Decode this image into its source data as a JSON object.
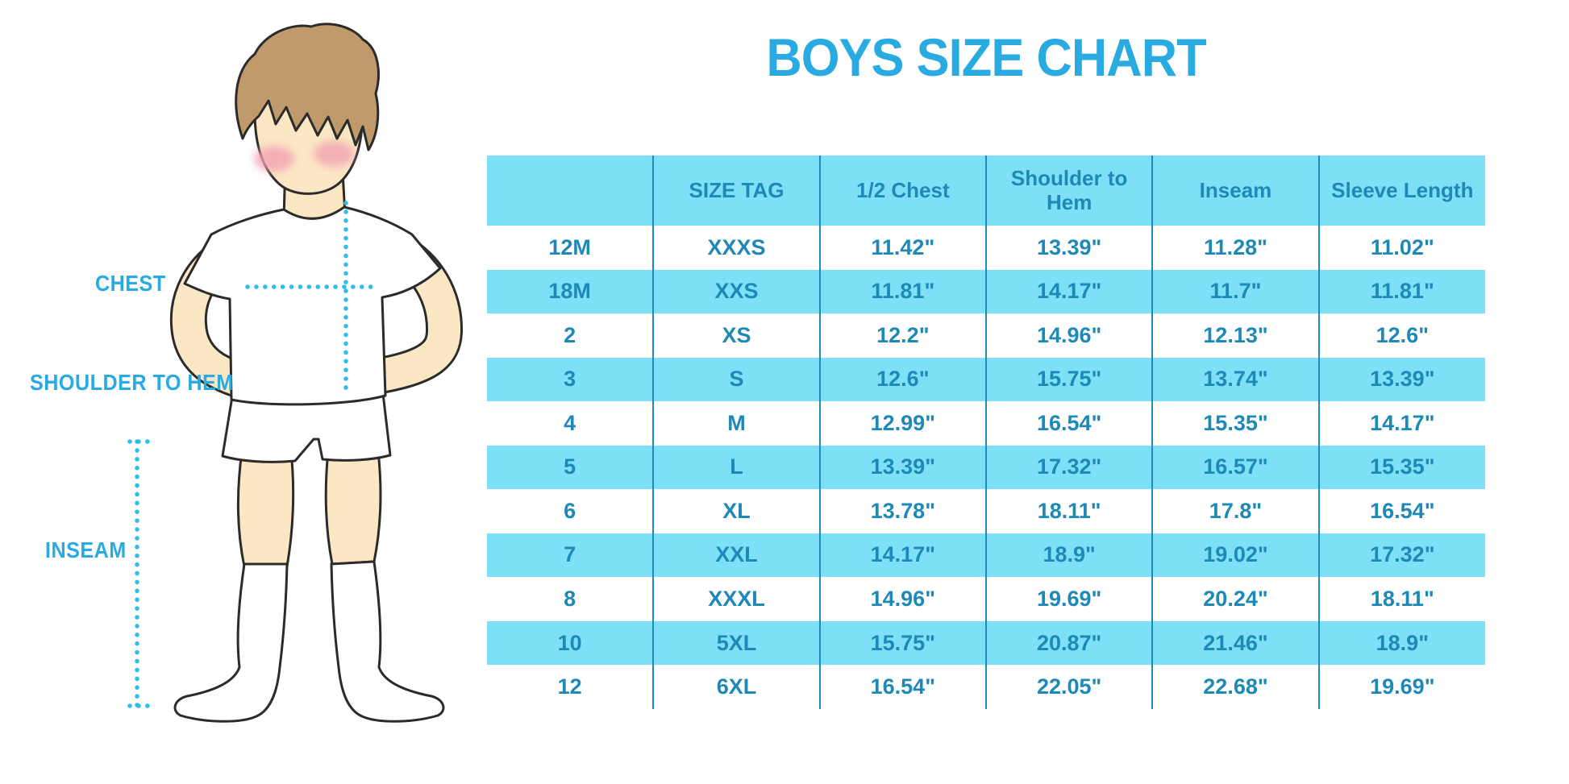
{
  "title": "BOYS SIZE CHART",
  "figure_labels": {
    "chest": "CHEST",
    "shoulder_to_hem": "SHOULDER TO HEM",
    "inseam": "INSEAM"
  },
  "colors": {
    "accent_blue": "#29ABE2",
    "table_fill": "#7DE0F6",
    "table_text": "#1E89B6",
    "table_line": "#1D8CBA",
    "dotted_line": "#2FBDEB",
    "skin": "#FBE7C4",
    "hair": "#C19A6B",
    "cheek": "#F2A3B3",
    "outline": "#2B2B2B"
  },
  "chart_data": {
    "type": "table",
    "title": "BOYS SIZE CHART",
    "columns": [
      "",
      "SIZE TAG",
      "1/2 Chest",
      "Shoulder to Hem",
      "Inseam",
      "Sleeve Length"
    ],
    "rows": [
      [
        "12M",
        "XXXS",
        "11.42\"",
        "13.39\"",
        "11.28\"",
        "11.02\""
      ],
      [
        "18M",
        "XXS",
        "11.81\"",
        "14.17\"",
        "11.7\"",
        "11.81\""
      ],
      [
        "2",
        "XS",
        "12.2\"",
        "14.96\"",
        "12.13\"",
        "12.6\""
      ],
      [
        "3",
        "S",
        "12.6\"",
        "15.75\"",
        "13.74\"",
        "13.39\""
      ],
      [
        "4",
        "M",
        "12.99\"",
        "16.54\"",
        "15.35\"",
        "14.17\""
      ],
      [
        "5",
        "L",
        "13.39\"",
        "17.32\"",
        "16.57\"",
        "15.35\""
      ],
      [
        "6",
        "XL",
        "13.78\"",
        "18.11\"",
        "17.8\"",
        "16.54\""
      ],
      [
        "7",
        "XXL",
        "14.17\"",
        "18.9\"",
        "19.02\"",
        "17.32\""
      ],
      [
        "8",
        "XXXL",
        "14.96\"",
        "19.69\"",
        "20.24\"",
        "18.11\""
      ],
      [
        "10",
        "5XL",
        "15.75\"",
        "20.87\"",
        "21.46\"",
        "18.9\""
      ],
      [
        "12",
        "6XL",
        "16.54\"",
        "22.05\"",
        "22.68\"",
        "19.69\""
      ]
    ],
    "row_stripe_indexes": [
      1,
      3,
      5,
      7,
      9
    ],
    "legend_position": "none",
    "grid": "vertical-column-separators-only"
  }
}
